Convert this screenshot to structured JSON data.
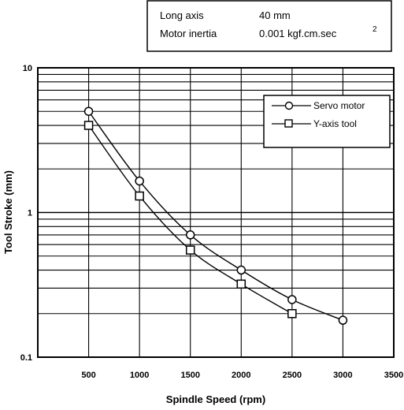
{
  "chart_data": {
    "type": "line",
    "y_scale": "log",
    "xlabel": "Spindle Speed (rpm)",
    "ylabel": "Tool Stroke (mm)",
    "xlim": [
      0,
      3500
    ],
    "ylim": [
      0.1,
      10
    ],
    "x_ticks": [
      500,
      1000,
      1500,
      2000,
      2500,
      3000,
      3500
    ],
    "x_tick_labels": [
      "500",
      "1000",
      "1500",
      "2000",
      "2500",
      "3000",
      "3500"
    ],
    "y_tick_labels": [
      "10",
      "1",
      "0.1"
    ],
    "grid": true,
    "legend_position": "top-right",
    "series": [
      {
        "name": "Servo motor",
        "marker": "circle",
        "x": [
          500,
          1000,
          1500,
          2000,
          2500,
          3000
        ],
        "y": [
          5.0,
          1.65,
          0.7,
          0.4,
          0.25,
          0.18
        ]
      },
      {
        "name": "Y-axis tool",
        "marker": "square",
        "x": [
          500,
          1000,
          1500,
          2000,
          2500
        ],
        "y": [
          4.0,
          1.3,
          0.55,
          0.32,
          0.2
        ]
      }
    ],
    "annotation": {
      "row1_label": "Long axis",
      "row1_value": "40 mm",
      "row2_label": "Motor inertia",
      "row2_value": "0.001 kgf.cm.sec",
      "row2_superscript": "2"
    }
  }
}
